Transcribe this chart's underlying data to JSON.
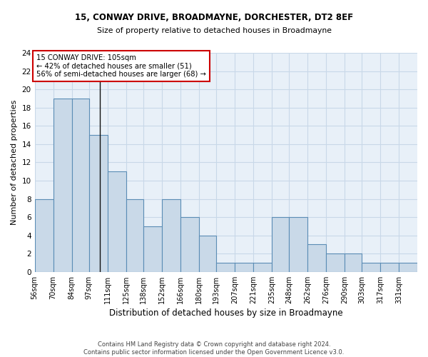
{
  "title1": "15, CONWAY DRIVE, BROADMAYNE, DORCHESTER, DT2 8EF",
  "title2": "Size of property relative to detached houses in Broadmayne",
  "xlabel": "Distribution of detached houses by size in Broadmayne",
  "ylabel": "Number of detached properties",
  "categories": [
    "56sqm",
    "70sqm",
    "84sqm",
    "97sqm",
    "111sqm",
    "125sqm",
    "138sqm",
    "152sqm",
    "166sqm",
    "180sqm",
    "193sqm",
    "207sqm",
    "221sqm",
    "235sqm",
    "248sqm",
    "262sqm",
    "276sqm",
    "290sqm",
    "303sqm",
    "317sqm",
    "331sqm"
  ],
  "values": [
    8,
    19,
    19,
    15,
    11,
    8,
    5,
    8,
    6,
    4,
    1,
    1,
    1,
    6,
    6,
    3,
    2,
    2,
    1,
    1,
    1
  ],
  "bar_color": "#c9d9e8",
  "bar_edge_color": "#5b8db5",
  "grid_color": "#c8d8e8",
  "background_color": "#e8f0f8",
  "annotation_box_color": "#ffffff",
  "annotation_box_edge": "#cc0000",
  "subject_line_color": "#111111",
  "property_size": 105,
  "property_label": "15 CONWAY DRIVE: 105sqm",
  "annotation_line1": "← 42% of detached houses are smaller (51)",
  "annotation_line2": "56% of semi-detached houses are larger (68) →",
  "ylim": [
    0,
    24
  ],
  "yticks": [
    0,
    2,
    4,
    6,
    8,
    10,
    12,
    14,
    16,
    18,
    20,
    22,
    24
  ],
  "footer1": "Contains HM Land Registry data © Crown copyright and database right 2024.",
  "footer2": "Contains public sector information licensed under the Open Government Licence v3.0.",
  "bin_edges": [
    56,
    70,
    84,
    97,
    111,
    125,
    138,
    152,
    166,
    180,
    193,
    207,
    221,
    235,
    248,
    262,
    276,
    290,
    303,
    317,
    331,
    345
  ]
}
